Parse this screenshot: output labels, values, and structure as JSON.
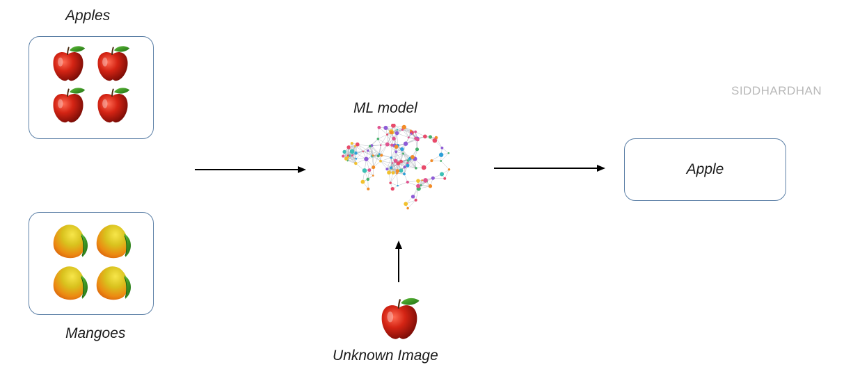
{
  "labels": {
    "apples": "Apples",
    "mangoes": "Mangoes",
    "ml_model": "ML model",
    "unknown_image": "Unknown Image",
    "output": "Apple"
  },
  "watermark": "SIDDHARDHAN",
  "icons": {
    "apple": "apple-icon",
    "mango": "mango-icon",
    "brain": "brain-network-icon",
    "arrow": "arrow-right-icon"
  },
  "colors": {
    "box_border": "#5b7fa6",
    "apple_red": "#c81d12",
    "leaf_green": "#2e8b1e",
    "mango_yellow": "#d6c21c",
    "mango_orange": "#e97a10"
  }
}
